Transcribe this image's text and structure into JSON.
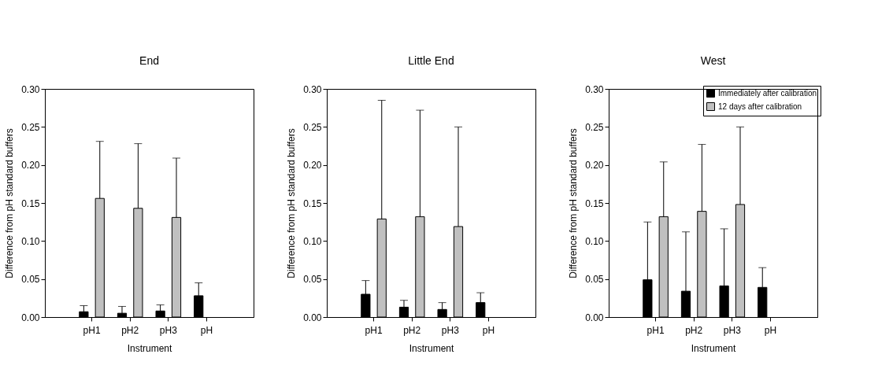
{
  "chart_data": [
    {
      "type": "bar",
      "title": "End",
      "xlabel": "Instrument",
      "ylabel": "Difference from pH standard buffers",
      "categories": [
        "pH1",
        "pH2",
        "pH3",
        "pH"
      ],
      "ylim": [
        0,
        0.3
      ],
      "yticks": [
        {
          "value": 0,
          "label": "0.00"
        },
        0.05,
        {
          "value": 0.1,
          "label": "0.10"
        },
        0.15,
        {
          "value": 0.2,
          "label": "0.20"
        },
        0.25,
        {
          "value": 0.3,
          "label": "0.30"
        }
      ],
      "grid": false,
      "legend": false,
      "series": [
        {
          "color": "#000000",
          "values": [
            0.007,
            0.005,
            0.008,
            0.028
          ],
          "errors": [
            [
              0.007,
              0.015
            ],
            [
              0.005,
              0.014
            ],
            [
              0.008,
              0.016
            ],
            [
              0.028,
              0.045
            ]
          ]
        },
        {
          "color": "#c0c0c0",
          "values": [
            0.156,
            0.143,
            0.131,
            null
          ],
          "errors": [
            [
              0.156,
              0.231
            ],
            [
              0.143,
              0.228
            ],
            [
              0.131,
              0.209
            ],
            null
          ]
        }
      ]
    },
    {
      "type": "bar",
      "title": "Little End",
      "xlabel": "Instrument",
      "ylabel": "Difference from pH standard buffers",
      "categories": [
        "pH1",
        "pH2",
        "pH3",
        "pH"
      ],
      "ylim": [
        0,
        0.3
      ],
      "yticks": [
        {
          "value": 0,
          "label": "0.00"
        },
        0.05,
        {
          "value": 0.1,
          "label": "0.10"
        },
        0.15,
        {
          "value": 0.2,
          "label": "0.20"
        },
        0.25,
        {
          "value": 0.3,
          "label": "0.30"
        }
      ],
      "grid": false,
      "legend": false,
      "series": [
        {
          "color": "#000000",
          "values": [
            0.03,
            0.013,
            0.01,
            0.019
          ],
          "errors": [
            [
              0.03,
              0.048
            ],
            [
              0.013,
              0.022
            ],
            [
              0.01,
              0.019
            ],
            [
              0.019,
              0.032
            ]
          ]
        },
        {
          "color": "#c0c0c0",
          "values": [
            0.129,
            0.132,
            0.119,
            null
          ],
          "errors": [
            [
              0.129,
              0.285
            ],
            [
              0.132,
              0.272
            ],
            [
              0.119,
              0.25
            ],
            null
          ]
        }
      ]
    },
    {
      "type": "bar",
      "title": "West",
      "xlabel": "Instrument",
      "ylabel": "Difference from pH standard buffers",
      "categories": [
        "pH1",
        "pH2",
        "pH3",
        "pH"
      ],
      "ylim": [
        0,
        0.3
      ],
      "yticks": [
        {
          "value": 0,
          "label": "0.00"
        },
        0.05,
        {
          "value": 0.1,
          "label": "0.10"
        },
        0.15,
        {
          "value": 0.2,
          "label": "0.20"
        },
        0.25,
        {
          "value": 0.3,
          "label": "0.30"
        }
      ],
      "grid": false,
      "legend": "top right",
      "series": [
        {
          "name": "Immediately after calibration",
          "color": "#000000",
          "values": [
            0.049,
            0.034,
            0.041,
            0.039
          ],
          "errors": [
            [
              0.049,
              0.125
            ],
            [
              0.034,
              0.112
            ],
            [
              0.041,
              0.116
            ],
            [
              0.039,
              0.065
            ]
          ]
        },
        {
          "name": "12 days after calibration",
          "color": "#c0c0c0",
          "values": [
            0.132,
            0.139,
            0.148,
            null
          ],
          "errors": [
            [
              0.132,
              0.204
            ],
            [
              0.139,
              0.227
            ],
            [
              0.148,
              0.25
            ],
            null
          ]
        }
      ]
    }
  ]
}
